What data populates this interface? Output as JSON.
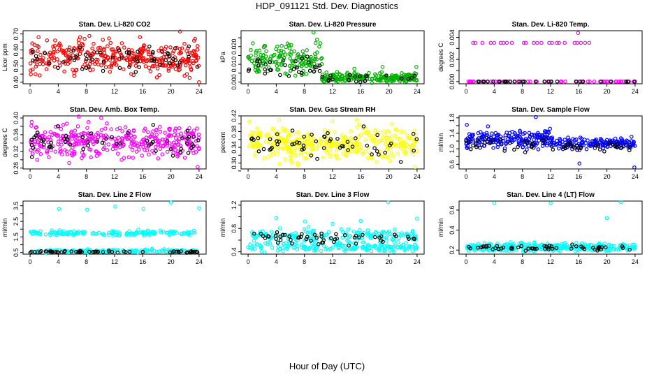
{
  "page": {
    "title": "HDP_091121  Std. Dev. Diagnostics",
    "xlabel": "Hour of Day (UTC)"
  },
  "chart_data": [
    {
      "type": "scatter",
      "title": "Stan. Dev. Li-820 CO2",
      "ylabel": "Licor ppm",
      "xticks": [
        0,
        4,
        8,
        12,
        16,
        20,
        24
      ],
      "xlim": [
        0,
        24
      ],
      "yticks": [
        0.4,
        0.45,
        0.5,
        0.55,
        0.6,
        0.65,
        0.7
      ],
      "yticklabels": [
        "0.40",
        "",
        "0.50",
        "",
        "0.60",
        "",
        "0.70"
      ],
      "ylim": [
        0.39,
        0.72
      ],
      "series": [
        {
          "name": "all",
          "color": "#ff0000",
          "n": 340,
          "center": 0.555,
          "spread": 0.05,
          "outliers": [
            [
              1.2,
              0.68
            ],
            [
              2.4,
              0.66
            ],
            [
              7.1,
              0.68
            ],
            [
              15.6,
              0.68
            ],
            [
              21.3,
              0.715
            ],
            [
              24.0,
              0.4
            ]
          ]
        },
        {
          "name": "hourly",
          "color": "#000000",
          "n": 60,
          "center": 0.55,
          "spread": 0.04,
          "outliers": []
        }
      ]
    },
    {
      "type": "scatter",
      "title": "Stan. Dev. Li-820 Pressure",
      "ylabel": "kPa",
      "xticks": [
        0,
        4,
        8,
        12,
        16,
        20,
        24
      ],
      "xlim": [
        0,
        24
      ],
      "yticks": [
        0.0,
        0.005,
        0.01,
        0.015,
        0.02,
        0.025
      ],
      "yticklabels": [
        "0.000",
        "",
        "0.010",
        "",
        "0.020",
        ""
      ],
      "ylim": [
        -0.001,
        0.029
      ],
      "series": [
        {
          "name": "all",
          "color": "#00b000",
          "n": 360,
          "segments": [
            [
              0,
              10.5,
              0.012,
              0.004
            ],
            [
              10.5,
              24,
              0.0025,
              0.0013
            ]
          ],
          "outliers": [
            [
              9.3,
              0.028
            ],
            [
              9.8,
              0.024
            ],
            [
              10.1,
              0.02
            ],
            [
              15.1,
              0.0075
            ],
            [
              19.1,
              0.0085
            ],
            [
              23.9,
              0.0085
            ]
          ]
        },
        {
          "name": "hourly",
          "color": "#000000",
          "n": 50,
          "segments": [
            [
              0,
              10.5,
              0.009,
              0.003
            ],
            [
              10.5,
              24,
              0.002,
              0.001
            ]
          ],
          "outliers": []
        }
      ]
    },
    {
      "type": "scatter",
      "title": "Stan. Dev. Li-820 Temp.",
      "ylabel": "degrees C",
      "xticks": [
        0,
        4,
        8,
        12,
        16,
        20,
        24
      ],
      "xlim": [
        0,
        24
      ],
      "yticks": [
        0.0,
        0.001,
        0.002,
        0.003,
        0.004
      ],
      "yticklabels": [
        "0.000",
        "",
        "0.002",
        "",
        "0.004"
      ],
      "ylim": [
        -0.0002,
        0.0046
      ],
      "series": [
        {
          "name": "all",
          "color": "#ff00ff",
          "n": 60,
          "constant": 0,
          "outliers": [
            [
              1.0,
              0.0035
            ],
            [
              1.3,
              0.0035
            ],
            [
              2.3,
              0.0035
            ],
            [
              3.5,
              0.0035
            ],
            [
              4.0,
              0.0035
            ],
            [
              4.9,
              0.0035
            ],
            [
              5.3,
              0.0035
            ],
            [
              5.8,
              0.0035
            ],
            [
              6.5,
              0.0035
            ],
            [
              8.2,
              0.0035
            ],
            [
              8.5,
              0.0035
            ],
            [
              9.6,
              0.0035
            ],
            [
              10.1,
              0.0035
            ],
            [
              10.7,
              0.0035
            ],
            [
              11.8,
              0.0035
            ],
            [
              12.2,
              0.0035
            ],
            [
              12.9,
              0.0035
            ],
            [
              13.2,
              0.0035
            ],
            [
              14.0,
              0.0035
            ],
            [
              15.4,
              0.0035
            ],
            [
              15.8,
              0.0035
            ],
            [
              16.3,
              0.0035
            ],
            [
              16.9,
              0.0035
            ],
            [
              17.5,
              0.0035
            ],
            [
              15.9,
              0.0044
            ]
          ]
        },
        {
          "name": "hourly",
          "color": "#000000",
          "n": 30,
          "constant": 0,
          "outliers": []
        }
      ]
    },
    {
      "type": "scatter",
      "title": "Stan. Dev. Amb. Box Temp.",
      "ylabel": "degrees C",
      "xticks": [
        0,
        4,
        8,
        12,
        16,
        20,
        24
      ],
      "xlim": [
        0,
        24
      ],
      "yticks": [
        0.28,
        0.3,
        0.32,
        0.34,
        0.36,
        0.38,
        0.4
      ],
      "yticklabels": [
        "0.28",
        "",
        "0.32",
        "",
        "0.36",
        "",
        "0.40"
      ],
      "ylim": [
        0.278,
        0.405
      ],
      "series": [
        {
          "name": "all",
          "color": "#ff00ff",
          "n": 360,
          "center": 0.345,
          "spread": 0.02,
          "outliers": [
            [
              10.1,
              0.4
            ],
            [
              23.8,
              0.283
            ],
            [
              1.0,
              0.3
            ],
            [
              13.0,
              0.3
            ]
          ]
        },
        {
          "name": "hourly",
          "color": "#000000",
          "n": 55,
          "center": 0.342,
          "spread": 0.015,
          "outliers": []
        }
      ]
    },
    {
      "type": "scatter",
      "title": "Stan. Dev. Gas Stream RH",
      "ylabel": "percent",
      "xticks": [
        0,
        4,
        8,
        12,
        16,
        20,
        24
      ],
      "xlim": [
        0,
        24
      ],
      "yticks": [
        0.28,
        0.3,
        0.32,
        0.34,
        0.36,
        0.38,
        0.4,
        0.42
      ],
      "yticklabels": [
        "",
        "0.30",
        "",
        "0.34",
        "",
        "0.38",
        "",
        "0.42"
      ],
      "ylim": [
        0.285,
        0.42
      ],
      "series": [
        {
          "name": "all",
          "color": "#ffff00",
          "n": 360,
          "center": 0.35,
          "spread": 0.02,
          "outliers": [
            [
              0.2,
              0.405
            ],
            [
              4.4,
              0.41
            ],
            [
              15.4,
              0.41
            ],
            [
              7.1,
              0.295
            ],
            [
              23.7,
              0.29
            ]
          ]
        },
        {
          "name": "hourly",
          "color": "#000000",
          "n": 55,
          "center": 0.345,
          "spread": 0.017,
          "outliers": []
        }
      ]
    },
    {
      "type": "scatter",
      "title": "Stan. Dev. Sample Flow",
      "ylabel": "ml/min",
      "xticks": [
        0,
        4,
        8,
        12,
        16,
        20,
        24
      ],
      "xlim": [
        0,
        24
      ],
      "yticks": [
        0.6,
        0.8,
        1.0,
        1.2,
        1.4,
        1.6,
        1.8
      ],
      "yticklabels": [
        "0.6",
        "",
        "1.0",
        "",
        "1.4",
        "",
        "1.8"
      ],
      "ylim": [
        0.48,
        1.85
      ],
      "series": [
        {
          "name": "all",
          "color": "#0000ff",
          "n": 360,
          "segments": [
            [
              0,
              12,
              1.25,
              0.12
            ],
            [
              12,
              24,
              1.15,
              0.07
            ]
          ],
          "outliers": [
            [
              0.1,
              1.62
            ],
            [
              9.9,
              1.82
            ],
            [
              16.1,
              0.62
            ],
            [
              23.9,
              0.52
            ],
            [
              3.1,
              1.58
            ]
          ]
        },
        {
          "name": "hourly",
          "color": "#000000",
          "n": 55,
          "segments": [
            [
              0,
              12,
              1.12,
              0.08
            ],
            [
              12,
              24,
              1.05,
              0.06
            ]
          ],
          "outliers": []
        }
      ]
    },
    {
      "type": "scatter",
      "title": "Stan. Dev. Line 2 Flow",
      "ylabel": "ml/min",
      "xticks": [
        0,
        4,
        8,
        12,
        16,
        20,
        24
      ],
      "xlim": [
        0,
        24
      ],
      "yticks": [
        0.5,
        1.0,
        1.5,
        2.0,
        2.5,
        3.0,
        3.5
      ],
      "yticklabels": [
        "0.5",
        "",
        "1.5",
        "",
        "2.5",
        "",
        "3.5"
      ],
      "ylim": [
        0.4,
        3.8
      ],
      "series": [
        {
          "name": "all",
          "color": "#00ffff",
          "n": 330,
          "bands": [
            [
              1.75,
              0.08
            ],
            [
              0.6,
              0.05
            ]
          ],
          "outliers": [
            [
              4.1,
              3.3
            ],
            [
              8.1,
              3.25
            ],
            [
              12.1,
              3.45
            ],
            [
              16.1,
              3.3
            ],
            [
              20.0,
              3.7
            ],
            [
              24.0,
              3.35
            ]
          ]
        },
        {
          "name": "hourly",
          "color": "#000000",
          "n": 60,
          "constant": 0.55,
          "jitter": 0.03,
          "outliers": []
        }
      ]
    },
    {
      "type": "scatter",
      "title": "Stan. Dev. Line 3 Flow",
      "ylabel": "ml/min",
      "xticks": [
        0,
        4,
        8,
        12,
        16,
        20,
        24
      ],
      "xlim": [
        0,
        24
      ],
      "yticks": [
        0.4,
        0.6,
        0.8,
        1.0,
        1.2
      ],
      "yticklabels": [
        "0.4",
        "",
        "0.8",
        "",
        "1.2"
      ],
      "ylim": [
        0.36,
        1.27
      ],
      "series": [
        {
          "name": "all",
          "color": "#00ffff",
          "n": 340,
          "bands": [
            [
              0.68,
              0.05
            ],
            [
              0.48,
              0.04
            ]
          ],
          "outliers": [
            [
              4.0,
              0.98
            ],
            [
              8.1,
              0.92
            ],
            [
              12.0,
              0.88
            ],
            [
              16.0,
              0.93
            ],
            [
              19.9,
              1.25
            ],
            [
              24.0,
              0.97
            ]
          ]
        },
        {
          "name": "hourly",
          "color": "#000000",
          "n": 55,
          "center": 0.64,
          "spread": 0.05,
          "outliers": []
        }
      ]
    },
    {
      "type": "scatter",
      "title": "Stan. Dev. Line 4 (LT) Flow",
      "ylabel": "ml/min",
      "xticks": [
        0,
        4,
        8,
        12,
        16,
        20,
        24
      ],
      "xlim": [
        0,
        24
      ],
      "yticks": [
        0.2,
        0.4,
        0.6
      ],
      "yticklabels": [
        "0.2",
        "0.4",
        "0.6"
      ],
      "ylim": [
        0.16,
        0.69
      ],
      "series": [
        {
          "name": "all",
          "color": "#00ffff",
          "n": 330,
          "center": 0.23,
          "spread": 0.02,
          "outliers": [
            [
              4.0,
              0.67
            ],
            [
              12.0,
              0.67
            ],
            [
              20.0,
              0.52
            ],
            [
              22.0,
              0.68
            ]
          ]
        },
        {
          "name": "hourly",
          "color": "#000000",
          "n": 55,
          "center": 0.225,
          "spread": 0.015,
          "outliers": []
        }
      ]
    }
  ]
}
